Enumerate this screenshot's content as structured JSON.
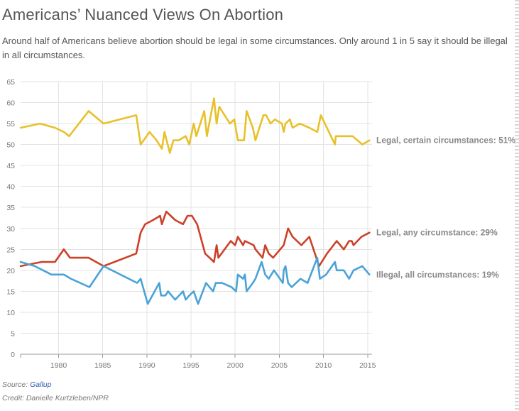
{
  "header": {
    "title": "Americans’ Nuanced Views On Abortion",
    "subtitle": "Around half of Americans believe abortion should be legal in some circumstances. Only around 1 in 5 say it should be illegal in all circumstances."
  },
  "footer": {
    "source_label": "Source: ",
    "source_link": "Gallup",
    "credit": "Credit: Danielle Kurtzleben/NPR"
  },
  "chart_data": {
    "type": "line",
    "title": "Americans’ Nuanced Views On Abortion",
    "xlabel": "",
    "ylabel": "",
    "xlim": [
      1975.7,
      2015.5
    ],
    "ylim": [
      0,
      65
    ],
    "xticks": [
      1980,
      1985,
      1990,
      1995,
      2000,
      2005,
      2010,
      2015
    ],
    "yticks": [
      0,
      5,
      10,
      15,
      20,
      25,
      30,
      35,
      40,
      45,
      50,
      55,
      60,
      65
    ],
    "grid": true,
    "legend": "inline labels at line ends",
    "series": [
      {
        "name": "Legal, certain circumstances: 51%",
        "color": "#e8c12a",
        "x": [
          1975.7,
          1977.9,
          1979.6,
          1980.6,
          1981.2,
          1983.4,
          1985.1,
          1988.8,
          1989.3,
          1990.3,
          1991.1,
          1991.7,
          1992.0,
          1992.6,
          1993.0,
          1993.6,
          1994.4,
          1994.8,
          1995.3,
          1995.6,
          1996.5,
          1996.8,
          1997.6,
          1997.9,
          1998.2,
          1999.4,
          1999.9,
          2000.3,
          2001.0,
          2001.3,
          2002.0,
          2002.3,
          2003.2,
          2003.5,
          2004.0,
          2004.5,
          2005.3,
          2005.5,
          2005.7,
          2006.2,
          2006.5,
          2007.3,
          2008.4,
          2009.3,
          2009.7,
          2011.3,
          2011.4,
          2012.3,
          2013.3,
          2014.4,
          2015.2
        ],
        "values": [
          54,
          55,
          54,
          53,
          52,
          58,
          55,
          57,
          50,
          53,
          51,
          49,
          53,
          48,
          51,
          51,
          52,
          50,
          55,
          52,
          58,
          52,
          61,
          55,
          59,
          55,
          56,
          51,
          51,
          58,
          54,
          51,
          57,
          57,
          55,
          56,
          55,
          53,
          55,
          56,
          54,
          55,
          54,
          53,
          57,
          50,
          52,
          52,
          52,
          50,
          51
        ]
      },
      {
        "name": "Legal, any circumstance: 29%",
        "color": "#cc4128",
        "x": [
          1975.7,
          1978.1,
          1979.6,
          1980.6,
          1981.3,
          1983.4,
          1985.1,
          1988.8,
          1989.3,
          1989.8,
          1990.7,
          1991.5,
          1991.7,
          1992.2,
          1992.7,
          1993.2,
          1994.1,
          1994.6,
          1995.1,
          1995.7,
          1996.6,
          1997.6,
          1997.9,
          1998.1,
          1999.5,
          2000.0,
          2000.3,
          2000.9,
          2001.1,
          2002.1,
          2002.3,
          2003.1,
          2003.4,
          2003.8,
          2004.3,
          2005.5,
          2006.0,
          2006.5,
          2007.5,
          2008.4,
          2009.5,
          2010.4,
          2011.5,
          2012.3,
          2012.9,
          2013.2,
          2013.4,
          2014.3,
          2015.2
        ],
        "values": [
          21,
          22,
          22,
          25,
          23,
          23,
          21,
          24,
          29,
          31,
          32,
          33,
          31,
          34,
          33,
          32,
          31,
          33,
          33,
          31,
          24,
          22,
          26,
          23,
          27,
          26,
          28,
          26,
          27,
          26,
          25,
          23,
          26,
          24,
          23,
          26,
          30,
          28,
          26,
          28,
          21,
          24,
          27,
          25,
          27,
          27,
          26,
          28,
          29
        ]
      },
      {
        "name": "Illegal, all circumstances: 19%",
        "color": "#4aa3d7",
        "x": [
          1975.7,
          1977.3,
          1979.2,
          1980.6,
          1981.4,
          1983.5,
          1985.1,
          1988.9,
          1989.3,
          1990.1,
          1991.4,
          1991.6,
          1992.1,
          1992.4,
          1993.2,
          1994.1,
          1994.4,
          1994.8,
          1995.3,
          1995.8,
          1996.7,
          1997.5,
          1997.8,
          1998.5,
          1999.6,
          2000.1,
          2000.3,
          2000.9,
          2001.1,
          2001.3,
          2002.0,
          2002.3,
          2003.0,
          2003.4,
          2003.8,
          2004.4,
          2005.4,
          2005.5,
          2005.7,
          2006.0,
          2006.4,
          2007.4,
          2008.2,
          2009.3,
          2009.6,
          2010.3,
          2011.3,
          2011.5,
          2012.3,
          2012.9,
          2013.4,
          2014.4,
          2015.2
        ],
        "values": [
          22,
          21,
          19,
          19,
          18,
          16,
          21,
          17,
          18,
          12,
          17,
          14,
          14,
          15,
          13,
          15,
          13,
          14,
          15,
          12,
          17,
          15,
          17,
          17,
          16,
          15,
          19,
          18,
          19,
          15,
          17,
          18,
          22,
          19,
          18,
          20,
          17,
          20,
          21,
          17,
          16,
          18,
          17,
          23,
          18,
          19,
          22,
          20,
          20,
          18,
          20,
          21,
          19
        ]
      }
    ]
  }
}
